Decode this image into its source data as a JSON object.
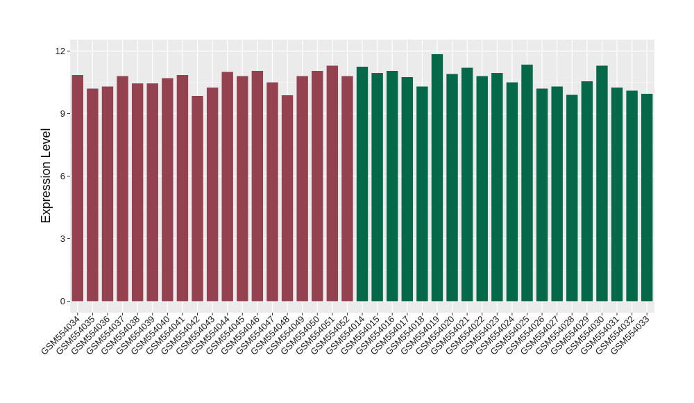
{
  "chart_data": {
    "type": "bar",
    "title": "",
    "xlabel": "",
    "ylabel": "Expression Level",
    "ylim": [
      -0.55,
      12.55
    ],
    "yticks": [
      0,
      3,
      6,
      9,
      12
    ],
    "grid": true,
    "legend": "none",
    "categories": [
      "GSM554034",
      "GSM554035",
      "GSM554036",
      "GSM554037",
      "GSM554038",
      "GSM554039",
      "GSM554040",
      "GSM554041",
      "GSM554042",
      "GSM554043",
      "GSM554044",
      "GSM554045",
      "GSM554046",
      "GSM554047",
      "GSM554048",
      "GSM554049",
      "GSM554050",
      "GSM554051",
      "GSM554052",
      "GSM554014",
      "GSM554015",
      "GSM554016",
      "GSM554017",
      "GSM554018",
      "GSM554019",
      "GSM554020",
      "GSM554021",
      "GSM554022",
      "GSM554023",
      "GSM554024",
      "GSM554025",
      "GSM554026",
      "GSM554027",
      "GSM554028",
      "GSM554029",
      "GSM554030",
      "GSM554031",
      "GSM554032",
      "GSM554033"
    ],
    "values": [
      10.85,
      10.2,
      10.3,
      10.8,
      10.45,
      10.45,
      10.7,
      10.85,
      9.85,
      10.25,
      11.0,
      10.8,
      11.05,
      10.5,
      9.88,
      10.8,
      11.05,
      11.3,
      10.8,
      11.25,
      10.95,
      11.05,
      10.75,
      10.3,
      11.85,
      10.9,
      11.2,
      10.8,
      10.95,
      10.5,
      11.35,
      10.2,
      10.3,
      9.9,
      10.55,
      11.3,
      10.25,
      10.1,
      9.95
    ],
    "colors": [
      "#944250",
      "#944250",
      "#944250",
      "#944250",
      "#944250",
      "#944250",
      "#944250",
      "#944250",
      "#944250",
      "#944250",
      "#944250",
      "#944250",
      "#944250",
      "#944250",
      "#944250",
      "#944250",
      "#944250",
      "#944250",
      "#944250",
      "#056848",
      "#056848",
      "#056848",
      "#056848",
      "#056848",
      "#056848",
      "#056848",
      "#056848",
      "#056848",
      "#056848",
      "#056848",
      "#056848",
      "#056848",
      "#056848",
      "#056848",
      "#056848",
      "#056848",
      "#056848",
      "#056848",
      "#056848"
    ],
    "panel_background": "#ebebeb",
    "grid_color": "#ffffff"
  }
}
